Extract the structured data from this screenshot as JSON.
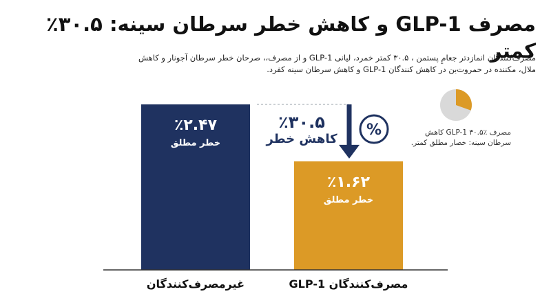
{
  "title": "مصرف GLP-1 و کاهش خطر سرطان سینه: ۳۰.۵٪ کمتر",
  "subtitle": "مصرف‌کنندگان انمازدتر جعامِ پستمن ، ۳۰.۵ کمتر خمرد، لیانی GLP-1 و از مصرف،، صرحان خطر سرطان آجونار و کاهش ملال، مکننده در حمروت‌بن در کاهش کنندگان GLP-1 و کاهش سرطان سینه کفرد.",
  "colors": {
    "non_users": "#1f3260",
    "users": "#dc9a26",
    "arrow": "#1f3260",
    "pie_remainder": "#d9d9d9",
    "axis": "#333333"
  },
  "chart_data": {
    "type": "bar",
    "categories": [
      "غیرمصرف‌کنندگان",
      "مصرف‌کنندگان GLP-1"
    ],
    "values": [
      2.47,
      1.62
    ],
    "value_labels": [
      "٪۲.۴۷",
      "٪۱.۶۲"
    ],
    "bar_sublabel": "خطر مطلق",
    "unit": "%",
    "ylim": [
      0,
      2.6
    ],
    "grid": false,
    "annotation": {
      "value": 30.5,
      "value_label": "٪۳۰.۵",
      "text": "کاهش خطر",
      "badge_icon": "percent-icon",
      "badge_glyph": "%"
    },
    "inset": {
      "type": "pie",
      "reduced_fraction": 0.305,
      "caption": "مصرف GLP-1 ۳۰.۵٪ کاهش سرطان سینه: خصار مطلق کمتر."
    }
  }
}
